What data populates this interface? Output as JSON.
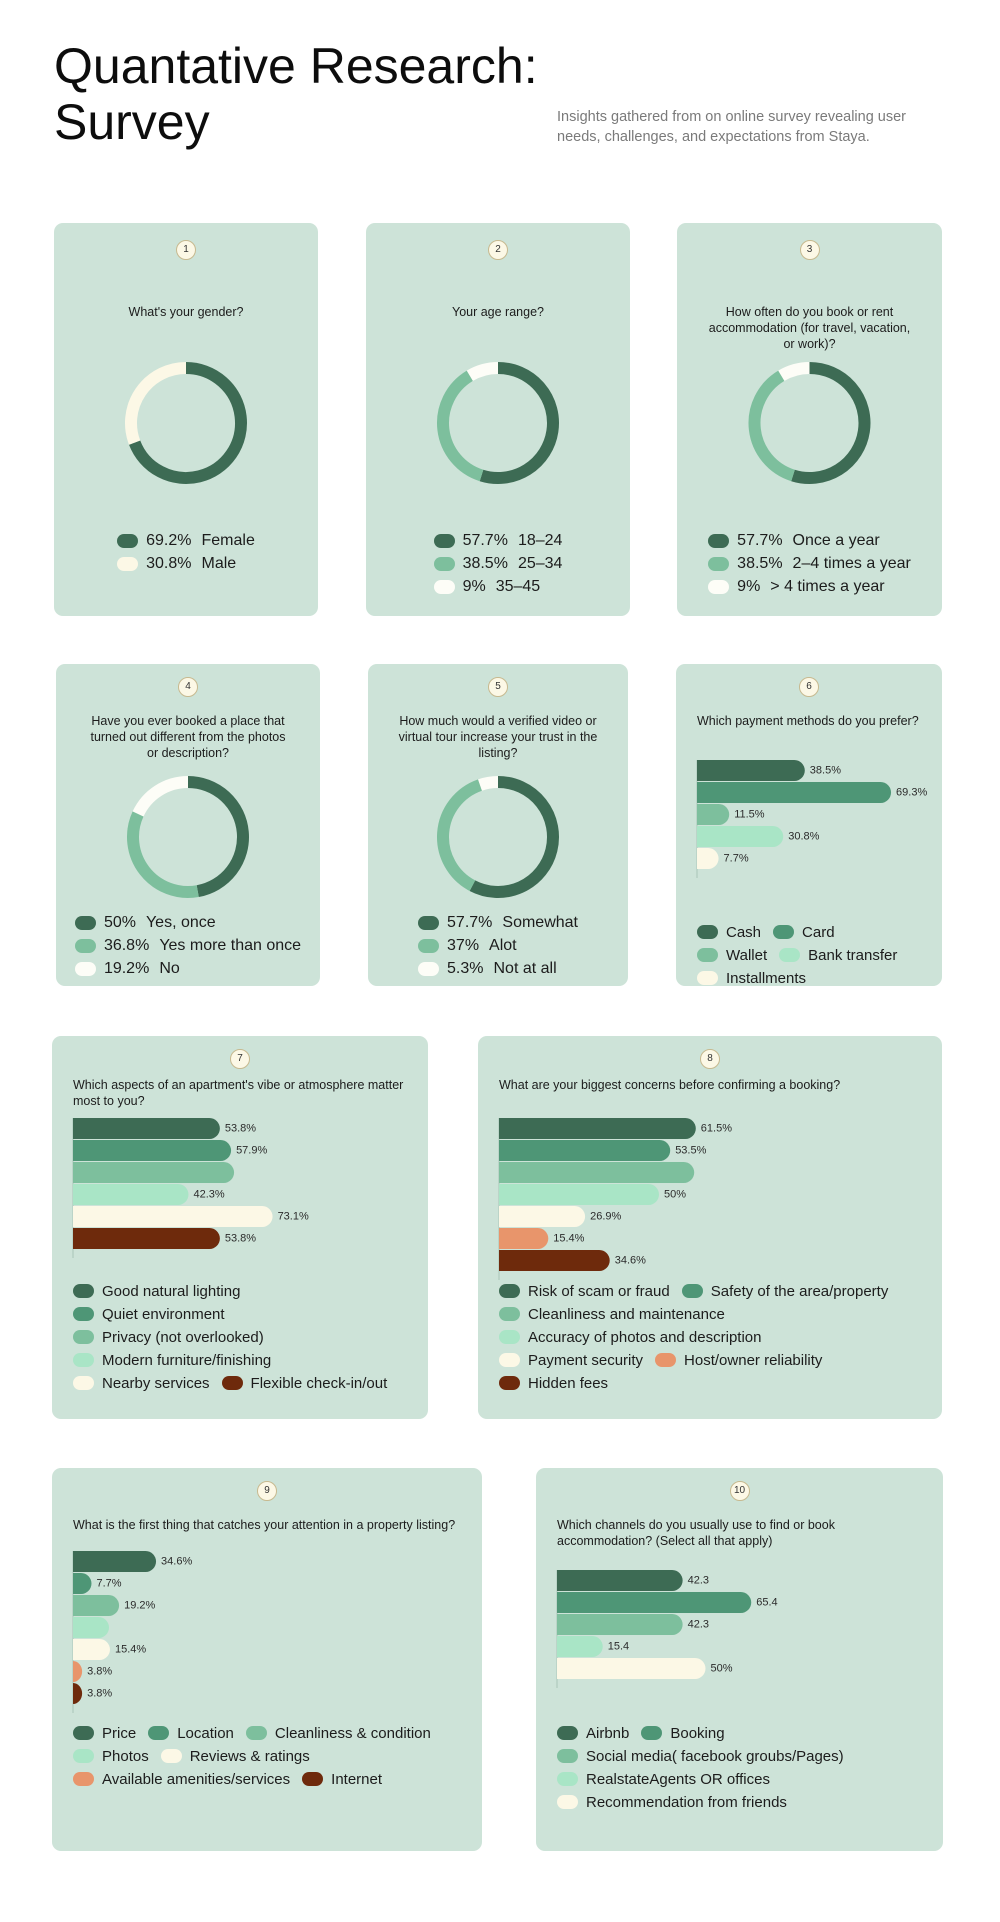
{
  "header": {
    "title": "Quantative Research: Survey",
    "subtitle": "Insights gathered from on online survey revealing user needs, challenges, and expectations from Staya."
  },
  "chart_data": [
    {
      "type": "pie",
      "number": "1",
      "title": "What's your gender?",
      "categories": [
        "Female",
        "Male"
      ],
      "values": [
        69.2,
        30.8
      ],
      "value_labels": [
        "69.2%",
        "30.8%"
      ],
      "colors": [
        "#3d6b54",
        "#fcf8e6"
      ]
    },
    {
      "type": "pie",
      "number": "2",
      "title": "Your age range?",
      "categories": [
        "18–24",
        "25–34",
        "35–45"
      ],
      "values": [
        57.7,
        38.5,
        9
      ],
      "value_labels": [
        "57.7%",
        "38.5%",
        "9%"
      ],
      "colors": [
        "#3d6b54",
        "#7dbf9d",
        "#fdfdf7"
      ]
    },
    {
      "type": "pie",
      "number": "3",
      "title": "How often do you book or rent accommodation (for travel, vacation, or work)?",
      "categories": [
        "Once a year",
        "2–4 times a year",
        "> 4 times a year"
      ],
      "values": [
        57.7,
        38.5,
        9
      ],
      "value_labels": [
        "57.7%",
        "38.5%",
        "9%"
      ],
      "colors": [
        "#3d6b54",
        "#7dbf9d",
        "#fdfdf7"
      ]
    },
    {
      "type": "pie",
      "number": "4",
      "title": "Have you ever booked a place that turned out different from the photos or description?",
      "categories": [
        "Yes, once",
        "Yes more than once",
        "No"
      ],
      "values": [
        50,
        36.8,
        19.2
      ],
      "value_labels": [
        "50%",
        "36.8%",
        "19.2%"
      ],
      "colors": [
        "#3d6b54",
        "#7dbf9d",
        "#fdfdf7"
      ]
    },
    {
      "type": "pie",
      "number": "5",
      "title": "How much would a verified video or virtual tour increase your trust in the listing?",
      "categories": [
        "Somewhat",
        "Alot",
        "Not at all"
      ],
      "values": [
        57.7,
        37,
        5.3
      ],
      "value_labels": [
        "57.7%",
        "37%",
        "5.3%"
      ],
      "colors": [
        "#3d6b54",
        "#7dbf9d",
        "#fdfdf7"
      ]
    },
    {
      "type": "bar",
      "number": "6",
      "title": "Which payment methods do you prefer?",
      "categories": [
        "Cash",
        "Card",
        "Wallet",
        "Bank transfer",
        "Installments"
      ],
      "values": [
        38.5,
        69.3,
        11.5,
        30.8,
        7.7
      ],
      "value_labels": [
        "38.5%",
        "69.3%",
        "11.5%",
        "30.8%",
        "7.7%"
      ],
      "colors": [
        "#3d6b54",
        "#4e9676",
        "#7dbf9d",
        "#a9e5c6",
        "#fcf8e6"
      ]
    },
    {
      "type": "bar",
      "number": "7",
      "title": "Which aspects of an apartment's vibe or atmosphere matter most to you?",
      "categories": [
        "Good natural lighting",
        "Quiet environment",
        "Privacy (not overlooked)",
        "Modern furniture/finishing",
        "Nearby services",
        "Flexible check-in/out"
      ],
      "values": [
        53.8,
        57.9,
        59,
        42.3,
        73.1,
        53.8
      ],
      "value_labels": [
        "53.8%",
        "57.9%",
        null,
        "42.3%",
        "73.1%",
        "53.8%"
      ],
      "colors": [
        "#3d6b54",
        "#4e9676",
        "#7dbf9d",
        "#a9e5c6",
        "#fcf8e6",
        "#6e2a0c"
      ]
    },
    {
      "type": "bar",
      "number": "8",
      "title": "What are your biggest concerns before confirming a booking?",
      "categories": [
        "Risk of scam or fraud",
        "Safety of the area/property",
        "Cleanliness and maintenance",
        "Accuracy of photos and description",
        "Payment security",
        "Host/owner reliability",
        "Hidden fees"
      ],
      "values": [
        61.5,
        53.5,
        61,
        50,
        26.9,
        15.4,
        34.6
      ],
      "value_labels": [
        "61.5%",
        "53.5%",
        null,
        "50%",
        "26.9%",
        "15.4%",
        "34.6%"
      ],
      "colors": [
        "#3d6b54",
        "#4e9676",
        "#7dbf9d",
        "#a9e5c6",
        "#fcf8e6",
        "#e8956b",
        "#6e2a0c"
      ]
    },
    {
      "type": "bar",
      "number": "9",
      "title": "What is the first thing that catches your attention in a property listing?",
      "categories": [
        "Price",
        "Location",
        "Cleanliness & condition",
        "Photos",
        "Reviews & ratings",
        "Available amenities/services",
        "Internet"
      ],
      "values": [
        34.6,
        7.7,
        19.2,
        15,
        15.4,
        3.8,
        3.8
      ],
      "value_labels": [
        "34.6%",
        "7.7%",
        "19.2%",
        null,
        "15.4%",
        "3.8%",
        "3.8%"
      ],
      "colors": [
        "#3d6b54",
        "#4e9676",
        "#7dbf9d",
        "#a9e5c6",
        "#fcf8e6",
        "#e8956b",
        "#6e2a0c"
      ]
    },
    {
      "type": "bar",
      "number": "10",
      "title": "Which channels do you usually use to find or book accommodation? (Select all that apply)",
      "categories": [
        "Airbnb",
        "Booking",
        "Social media( facebook groubs/Pages)",
        "RealstateAgents OR offices",
        "Recommendation from friends"
      ],
      "values": [
        42.3,
        65.4,
        42.3,
        15.4,
        50
      ],
      "value_labels": [
        "42.3",
        "65.4",
        "42.3",
        "15.4",
        "50%"
      ],
      "colors": [
        "#3d6b54",
        "#4e9676",
        "#7dbf9d",
        "#a9e5c6",
        "#fcf8e6"
      ]
    }
  ]
}
